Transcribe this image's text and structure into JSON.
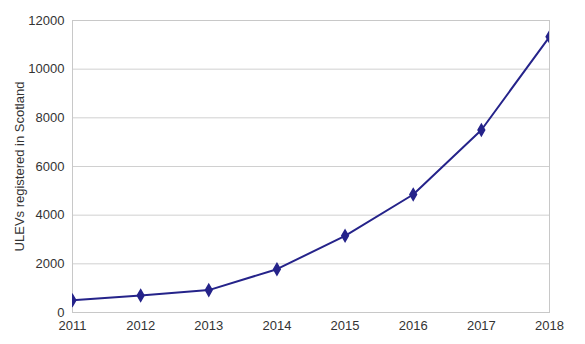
{
  "chart_data": {
    "type": "line",
    "y_label": "ULEVs registered in Scotland",
    "x": [
      2011,
      2012,
      2013,
      2014,
      2015,
      2016,
      2017,
      2018
    ],
    "values": [
      500,
      700,
      920,
      1780,
      3150,
      4850,
      7500,
      11330
    ],
    "color": "#25238a",
    "marker": "diamond",
    "xlim": [
      2011,
      2018
    ],
    "xticks": [
      2011,
      2012,
      2013,
      2014,
      2015,
      2016,
      2017,
      2018
    ],
    "ylim": [
      0,
      12000
    ],
    "yticks": [
      0,
      2000,
      4000,
      6000,
      8000,
      10000,
      12000
    ],
    "grid": true
  }
}
